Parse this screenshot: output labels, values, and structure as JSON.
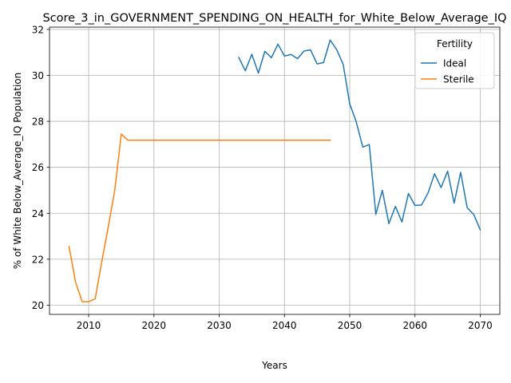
{
  "chart_data": {
    "type": "line",
    "title": "Score_3_in_GOVERNMENT_SPENDING_ON_HEALTH_for_White_Below_Average_IQ",
    "xlabel": "Years",
    "ylabel": "% of White Below_Average_IQ Population",
    "xlim": [
      2004,
      2073
    ],
    "ylim": [
      19.6,
      32.1
    ],
    "xticks": [
      2010,
      2020,
      2030,
      2040,
      2050,
      2060,
      2070
    ],
    "yticks": [
      20,
      22,
      24,
      26,
      28,
      30,
      32
    ],
    "grid": true,
    "legend": {
      "title": "Fertility",
      "placement": "top-right"
    },
    "series": [
      {
        "name": "Ideal",
        "color": "#1f77b4",
        "x": [
          2033,
          2034,
          2035,
          2036,
          2037,
          2038,
          2039,
          2040,
          2041,
          2042,
          2043,
          2044,
          2045,
          2046,
          2047,
          2048,
          2049,
          2050,
          2051,
          2052,
          2053,
          2054,
          2055,
          2056,
          2057,
          2058,
          2059,
          2060,
          2061,
          2062,
          2063,
          2064,
          2065,
          2066,
          2067,
          2068,
          2069,
          2070
        ],
        "y": [
          30.78,
          30.2,
          30.92,
          30.1,
          31.05,
          30.77,
          31.36,
          30.84,
          30.91,
          30.73,
          31.06,
          31.11,
          30.5,
          30.56,
          31.54,
          31.12,
          30.48,
          28.76,
          27.98,
          26.88,
          26.99,
          23.95,
          25.0,
          23.55,
          24.3,
          23.62,
          24.86,
          24.34,
          24.36,
          24.88,
          25.72,
          25.12,
          25.83,
          24.44,
          25.78,
          24.24,
          23.95,
          23.28
        ]
      },
      {
        "name": "Sterile",
        "color": "#ff7f0e",
        "x": [
          2007,
          2008,
          2009,
          2010,
          2011,
          2012,
          2013,
          2014,
          2015,
          2016,
          2017,
          2018,
          2019,
          2020,
          2021,
          2022,
          2023,
          2024,
          2025,
          2026,
          2027,
          2028,
          2029,
          2030,
          2031,
          2032,
          2033,
          2034,
          2035,
          2036,
          2037,
          2038,
          2039,
          2040,
          2041,
          2042,
          2043,
          2044,
          2045,
          2046,
          2047
        ],
        "y": [
          22.55,
          21.0,
          20.15,
          20.15,
          20.28,
          21.88,
          23.4,
          25.0,
          27.45,
          27.18,
          27.18,
          27.18,
          27.18,
          27.18,
          27.18,
          27.18,
          27.18,
          27.18,
          27.18,
          27.18,
          27.18,
          27.18,
          27.18,
          27.18,
          27.18,
          27.18,
          27.18,
          27.18,
          27.18,
          27.18,
          27.18,
          27.18,
          27.18,
          27.18,
          27.18,
          27.18,
          27.18,
          27.18,
          27.18,
          27.18,
          27.18
        ]
      }
    ]
  }
}
